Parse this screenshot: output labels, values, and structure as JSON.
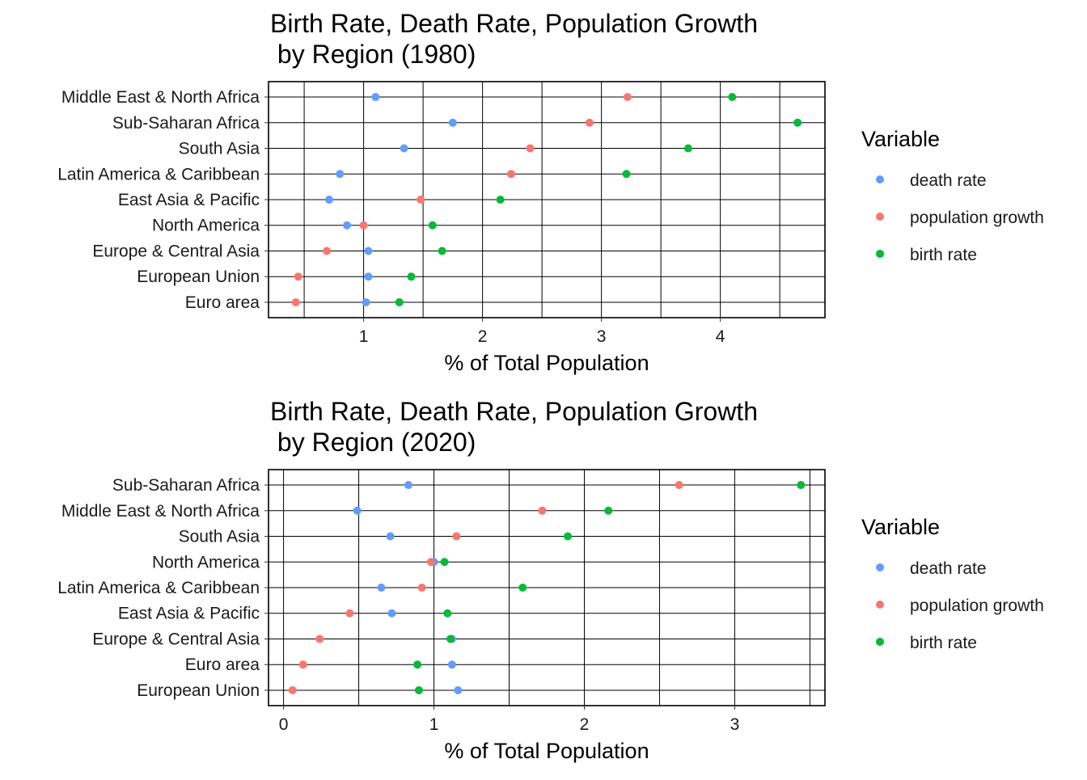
{
  "chart_data": [
    {
      "type": "scatter",
      "title": "Birth Rate, Death Rate, Population Growth\n by Region (1980)",
      "xlabel": "% of Total Population",
      "ylabel": "",
      "xlim": [
        0.2,
        4.88
      ],
      "xticks": [
        1,
        2,
        3,
        4
      ],
      "grid": true,
      "legend": {
        "title": "Variable",
        "position": "right"
      },
      "categories": [
        "Middle East & North Africa",
        "Sub-Saharan Africa",
        "South Asia",
        "Latin America & Caribbean",
        "East Asia & Pacific",
        "North America",
        "Europe & Central Asia",
        "European Union",
        "Euro area"
      ],
      "series": [
        {
          "name": "death rate",
          "color": "#619CFF",
          "values": [
            1.1,
            1.75,
            1.34,
            0.8,
            0.71,
            0.86,
            1.04,
            1.04,
            1.02
          ]
        },
        {
          "name": "population growth",
          "color": "#F8766D",
          "values": [
            3.22,
            2.9,
            2.4,
            2.24,
            1.48,
            1.0,
            0.69,
            0.45,
            0.43
          ]
        },
        {
          "name": "birth rate",
          "color": "#00BA38",
          "values": [
            4.1,
            4.65,
            3.73,
            3.21,
            2.15,
            1.58,
            1.66,
            1.4,
            1.3
          ]
        }
      ]
    },
    {
      "type": "scatter",
      "title": "Birth Rate, Death Rate, Population Growth\n by Region (2020)",
      "xlabel": "% of Total Population",
      "ylabel": "",
      "xlim": [
        -0.1,
        3.6
      ],
      "xticks": [
        0,
        1,
        2,
        3
      ],
      "grid": true,
      "legend": {
        "title": "Variable",
        "position": "right"
      },
      "categories": [
        "Sub-Saharan Africa",
        "Middle East & North Africa",
        "South Asia",
        "North America",
        "Latin America & Caribbean",
        "East Asia & Pacific",
        "Europe & Central Asia",
        "Euro area",
        "European Union"
      ],
      "series": [
        {
          "name": "death rate",
          "color": "#619CFF",
          "values": [
            0.83,
            0.49,
            0.71,
            1.0,
            0.65,
            0.72,
            1.12,
            1.12,
            1.16
          ]
        },
        {
          "name": "population growth",
          "color": "#F8766D",
          "values": [
            2.63,
            1.72,
            1.15,
            0.98,
            0.92,
            0.44,
            0.24,
            0.13,
            0.06
          ]
        },
        {
          "name": "birth rate",
          "color": "#00BA38",
          "values": [
            3.44,
            2.16,
            1.89,
            1.07,
            1.59,
            1.09,
            1.11,
            0.89,
            0.9
          ]
        }
      ]
    }
  ]
}
